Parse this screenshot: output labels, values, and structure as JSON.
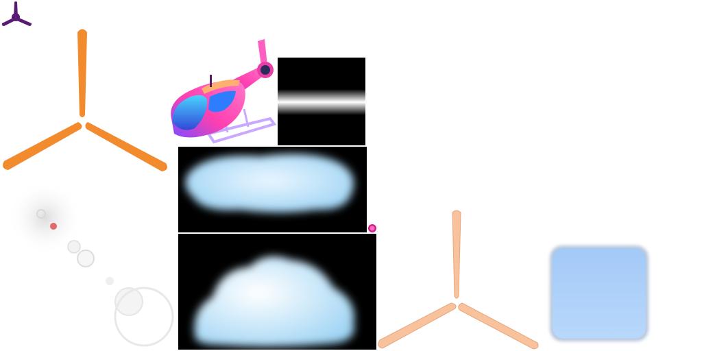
{
  "atlas": {
    "background": "#ffffff",
    "sprites": [
      {
        "name": "propeller-small-icon",
        "color": "#5b1a73"
      },
      {
        "name": "propeller-large-icon",
        "color": "#f28a2e"
      },
      {
        "name": "helicopter-sprite",
        "colors": [
          "#ff3fb0",
          "#3b8cff",
          "#ffb070"
        ]
      },
      {
        "name": "light-beam-strip",
        "color": "#ffffff"
      },
      {
        "name": "cloud-wide-sprite",
        "color": "#cfeaff"
      },
      {
        "name": "pink-dot-sprite",
        "color": "#d81e8c"
      },
      {
        "name": "cloud-tall-sprite",
        "color": "#dff1ff"
      },
      {
        "name": "lens-flare-sprite",
        "color": "#e6e6e6"
      },
      {
        "name": "propeller-peach-icon",
        "color": "#f7c29c"
      },
      {
        "name": "blue-rounded-square",
        "color": "#a9cef8"
      }
    ]
  }
}
